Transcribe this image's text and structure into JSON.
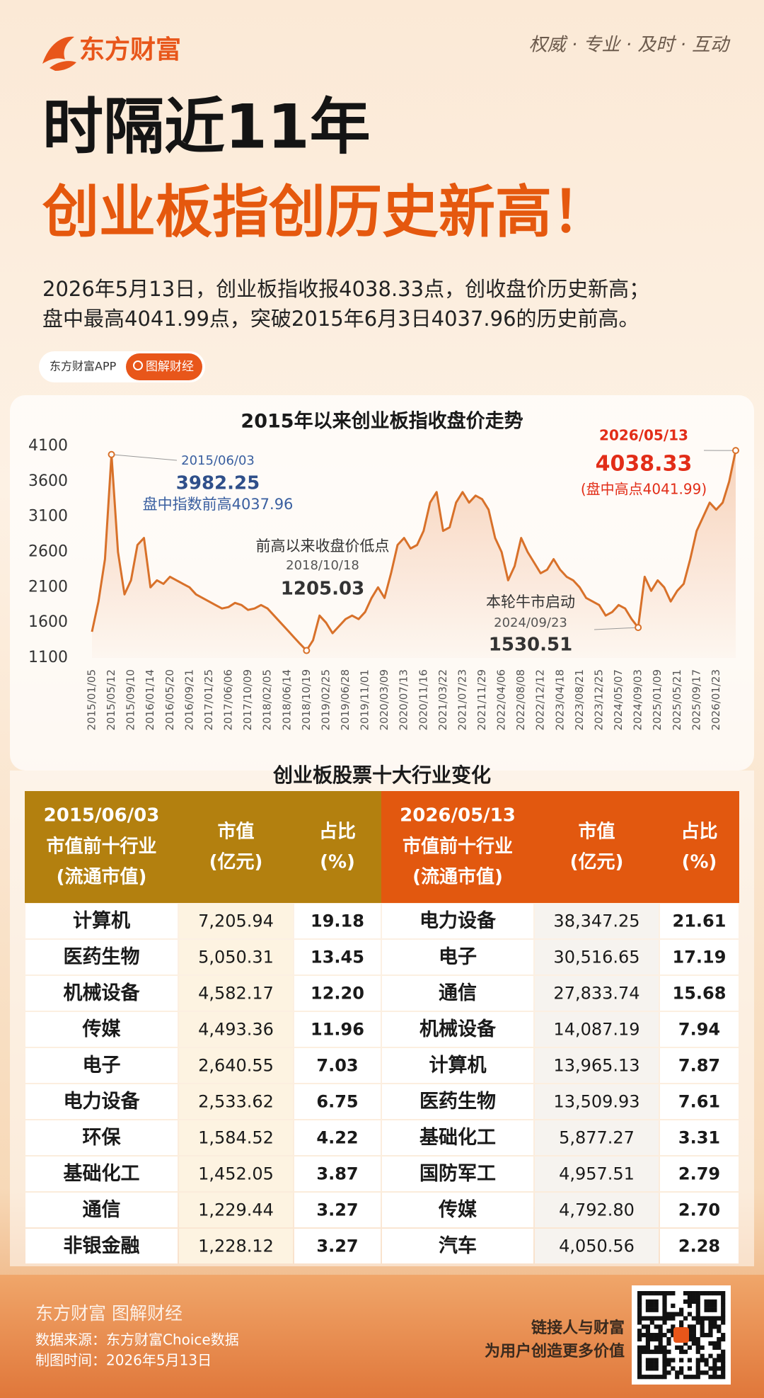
{
  "header": {
    "logo": "东方财富",
    "slogan": "权威 · 专业 · 及时 · 互动",
    "title": "时隔近11年",
    "headline": "创业板指创历史新高！",
    "lines": [
      "2026年5月13日，创业板指收报4038.33点，创收盘价历史新高；",
      "盘中最高4041.99点，突破2015年6月3日4037.96的历史前高。"
    ],
    "app": "东方财富APP",
    "tag": "图解财经"
  },
  "chart_data": {
    "type": "line",
    "title": "2015年以来创业板指收盘价走势",
    "color": "#d8712a",
    "categories": [
      "2015/01/05",
      null,
      null,
      "2015/05/12",
      null,
      null,
      "2015/09/10",
      null,
      null,
      "2016/01/14",
      null,
      null,
      "2016/05/20",
      null,
      null,
      "2016/09/21",
      null,
      null,
      "2017/01/25",
      null,
      null,
      "2017/06/06",
      null,
      null,
      "2017/10/09",
      null,
      null,
      "2018/02/05",
      null,
      null,
      "2018/06/14",
      null,
      null,
      "2018/10/19",
      null,
      null,
      "2019/02/25",
      null,
      null,
      "2019/06/28",
      null,
      null,
      "2019/11/01",
      null,
      null,
      "2020/03/09",
      null,
      null,
      "2020/07/13",
      null,
      null,
      "2020/11/16",
      null,
      null,
      "2021/03/22",
      null,
      null,
      "2021/07/23",
      null,
      null,
      "2021/11/29",
      null,
      null,
      "2022/04/06",
      null,
      null,
      "2022/08/08",
      null,
      null,
      "2022/12/12",
      null,
      null,
      "2023/04/18",
      null,
      null,
      "2023/08/21",
      null,
      null,
      "2023/12/25",
      null,
      null,
      "2024/05/07",
      null,
      null,
      "2024/09/03",
      null,
      null,
      "2025/01/09",
      null,
      null,
      "2025/05/21",
      null,
      null,
      "2025/09/17",
      null,
      null,
      "2026/01/23",
      null,
      null,
      null
    ],
    "values": [
      1470,
      1900,
      2500,
      3982.25,
      2600,
      2000,
      2200,
      2700,
      2800,
      2100,
      2200,
      2150,
      2250,
      2200,
      2150,
      2100,
      2000,
      1950,
      1900,
      1850,
      1800,
      1820,
      1880,
      1850,
      1780,
      1800,
      1850,
      1800,
      1700,
      1600,
      1500,
      1400,
      1300,
      1205.03,
      1350,
      1700,
      1600,
      1450,
      1550,
      1650,
      1700,
      1650,
      1750,
      1950,
      2100,
      1950,
      2300,
      2700,
      2800,
      2650,
      2700,
      2900,
      3300,
      3450,
      2900,
      2950,
      3300,
      3450,
      3300,
      3400,
      3350,
      3200,
      2800,
      2600,
      2200,
      2400,
      2800,
      2600,
      2450,
      2300,
      2350,
      2500,
      2350,
      2250,
      2200,
      2100,
      1950,
      1900,
      1850,
      1700,
      1750,
      1850,
      1800,
      1650,
      1530.51,
      2250,
      2050,
      2200,
      2100,
      1900,
      2050,
      2150,
      2500,
      2900,
      3100,
      3300,
      3200,
      3300,
      3600,
      4038.33
    ],
    "ylim": [
      1100,
      4100
    ],
    "yticks": [
      1100,
      1600,
      2100,
      2600,
      3100,
      3600,
      4100
    ],
    "grid": false,
    "annotations": [
      {
        "label": "2015/06/03",
        "value": 3982.25,
        "note": "盘中指数前高4037.96"
      },
      {
        "title": "前高以来收盘价低点",
        "label": "2018/10/18",
        "value": 1205.03
      },
      {
        "title": "本轮牛市启动",
        "label": "2024/09/23",
        "value": 1530.51
      },
      {
        "label": "2026/05/13",
        "value": 4038.33,
        "note": "(盘中高点4041.99)"
      }
    ]
  },
  "table": {
    "title": "创业板股票十大行业变化",
    "left": {
      "date": "2015/06/03",
      "heading": [
        "市值前十行业",
        "(流通市值)"
      ]
    },
    "right": {
      "date": "2026/05/13",
      "heading": [
        "市值前十行业",
        "(流通市值)"
      ]
    },
    "columns": [
      [
        "市值",
        "(亿元)"
      ],
      [
        "占比",
        "(%)"
      ]
    ],
    "rows": [
      [
        "计算机",
        "7,205.94",
        "19.18",
        "电力设备",
        "38,347.25",
        "21.61"
      ],
      [
        "医药生物",
        "5,050.31",
        "13.45",
        "电子",
        "30,516.65",
        "17.19"
      ],
      [
        "机械设备",
        "4,582.17",
        "12.20",
        "通信",
        "27,833.74",
        "15.68"
      ],
      [
        "传媒",
        "4,493.36",
        "11.96",
        "机械设备",
        "14,087.19",
        "7.94"
      ],
      [
        "电子",
        "2,640.55",
        "7.03",
        "计算机",
        "13,965.13",
        "7.87"
      ],
      [
        "电力设备",
        "2,533.62",
        "6.75",
        "医药生物",
        "13,509.93",
        "7.61"
      ],
      [
        "环保",
        "1,584.52",
        "4.22",
        "基础化工",
        "5,877.27",
        "3.31"
      ],
      [
        "基础化工",
        "1,452.05",
        "3.87",
        "国防军工",
        "4,957.51",
        "2.79"
      ],
      [
        "通信",
        "1,229.44",
        "3.27",
        "传媒",
        "4,792.80",
        "2.70"
      ],
      [
        "非银金融",
        "1,228.12",
        "3.27",
        "汽车",
        "4,050.56",
        "2.28"
      ]
    ]
  },
  "footer": {
    "brand": "东方财富 图解财经",
    "source": "数据来源：东方财富Choice数据",
    "time": "制图时间：2026年5月13日",
    "slogan": [
      "链接人与财富",
      "为用户创造更多价值"
    ]
  }
}
